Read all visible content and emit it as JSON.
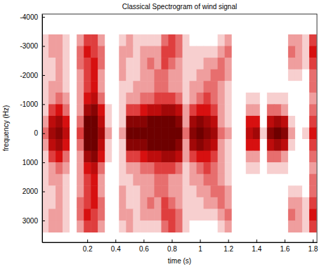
{
  "chart_data": {
    "type": "heatmap",
    "title": "Classical Spectrogram of wind signal",
    "x_label": "time (s)",
    "y_label": "frequency (Hz)",
    "color": "#d81010",
    "xlim": [
      -0.12,
      1.83
    ],
    "ylim": [
      -4100,
      3750
    ],
    "xticks": [
      0.2,
      0.4,
      0.6,
      0.8,
      1,
      1.2,
      1.4,
      1.6,
      1.8
    ],
    "yticks": [
      -4000,
      -3000,
      -2000,
      -1000,
      0,
      1000,
      2000,
      3000
    ],
    "x": [
      -0.1,
      -0.05,
      0,
      0.05,
      0.1,
      0.15,
      0.2,
      0.25,
      0.3,
      0.35,
      0.4,
      0.45,
      0.5,
      0.55,
      0.6,
      0.65,
      0.7,
      0.75,
      0.8,
      0.85,
      0.9,
      0.95,
      1,
      1.05,
      1.1,
      1.15,
      1.2,
      1.25,
      1.3,
      1.35,
      1.4,
      1.45,
      1.5,
      1.55,
      1.6,
      1.65,
      1.7,
      1.75,
      1.8
    ],
    "y": [
      -3200,
      -2800,
      -2400,
      -2000,
      -1600,
      -1200,
      -800,
      -400,
      0,
      400,
      800,
      1200,
      1600,
      2000,
      2400,
      2800,
      3200
    ],
    "cells": [
      [
        1,
        2,
        2,
        1,
        0,
        2,
        4,
        4,
        2,
        0,
        0,
        1,
        2,
        1,
        1,
        1,
        1,
        3,
        4,
        3,
        1,
        0,
        0,
        0,
        0,
        1,
        2,
        0,
        0,
        0,
        0,
        0,
        0,
        0,
        0,
        2,
        2,
        1,
        4
      ],
      [
        1,
        2,
        2,
        1,
        0,
        3,
        5,
        4,
        3,
        0,
        0,
        2,
        2,
        1,
        2,
        2,
        2,
        4,
        4,
        3,
        1,
        1,
        1,
        1,
        1,
        2,
        3,
        0,
        0,
        0,
        0,
        0,
        0,
        0,
        0,
        3,
        2,
        1,
        5
      ],
      [
        1,
        1,
        2,
        1,
        0,
        3,
        4,
        5,
        3,
        0,
        0,
        2,
        1,
        1,
        2,
        3,
        2,
        4,
        3,
        2,
        1,
        1,
        1,
        2,
        2,
        3,
        2,
        0,
        0,
        0,
        0,
        0,
        0,
        0,
        0,
        2,
        2,
        1,
        4
      ],
      [
        1,
        1,
        2,
        1,
        0,
        2,
        4,
        5,
        2,
        0,
        0,
        2,
        1,
        1,
        2,
        2,
        3,
        3,
        2,
        2,
        1,
        1,
        2,
        2,
        3,
        3,
        2,
        0,
        0,
        0,
        0,
        0,
        0,
        0,
        0,
        1,
        1,
        0,
        3
      ],
      [
        1,
        2,
        2,
        1,
        0,
        2,
        4,
        5,
        2,
        0,
        0,
        1,
        1,
        2,
        2,
        2,
        3,
        3,
        2,
        2,
        1,
        2,
        2,
        3,
        3,
        2,
        1,
        0,
        0,
        0,
        0,
        0,
        0,
        0,
        0,
        0,
        0,
        0,
        3
      ],
      [
        1,
        2,
        3,
        2,
        0,
        2,
        5,
        6,
        3,
        0,
        0,
        1,
        2,
        2,
        3,
        3,
        4,
        4,
        4,
        3,
        1,
        2,
        3,
        4,
        3,
        2,
        1,
        0,
        0,
        1,
        1,
        0,
        1,
        1,
        1,
        0,
        0,
        0,
        2
      ],
      [
        1,
        4,
        5,
        3,
        0,
        2,
        7,
        8,
        5,
        1,
        0,
        1,
        4,
        4,
        5,
        6,
        6,
        7,
        7,
        6,
        2,
        4,
        5,
        5,
        4,
        2,
        1,
        0,
        0,
        2,
        2,
        0,
        3,
        3,
        2,
        0,
        0,
        0,
        3
      ],
      [
        2,
        6,
        7,
        5,
        0,
        3,
        9,
        9,
        6,
        1,
        0,
        1,
        8,
        8,
        8,
        9,
        9,
        9,
        9,
        8,
        2,
        7,
        8,
        7,
        6,
        2,
        1,
        0,
        0,
        5,
        5,
        0,
        6,
        7,
        6,
        1,
        0,
        0,
        4
      ],
      [
        3,
        7,
        8,
        6,
        0,
        4,
        9,
        9,
        7,
        2,
        0,
        2,
        9,
        9,
        9,
        9,
        9,
        9,
        9,
        9,
        3,
        8,
        9,
        8,
        7,
        3,
        2,
        0,
        0,
        6,
        7,
        1,
        8,
        9,
        8,
        2,
        0,
        1,
        5
      ],
      [
        2,
        6,
        7,
        5,
        0,
        3,
        9,
        9,
        6,
        1,
        0,
        1,
        8,
        8,
        8,
        9,
        9,
        9,
        9,
        8,
        2,
        7,
        8,
        7,
        6,
        2,
        1,
        0,
        0,
        5,
        5,
        0,
        6,
        7,
        6,
        1,
        0,
        0,
        4
      ],
      [
        1,
        4,
        5,
        3,
        0,
        2,
        7,
        8,
        5,
        1,
        0,
        1,
        4,
        4,
        5,
        6,
        6,
        7,
        7,
        6,
        2,
        4,
        5,
        5,
        4,
        2,
        1,
        0,
        0,
        2,
        2,
        0,
        3,
        3,
        2,
        0,
        0,
        0,
        3
      ],
      [
        1,
        2,
        3,
        2,
        0,
        2,
        5,
        6,
        3,
        0,
        0,
        1,
        2,
        2,
        3,
        3,
        4,
        4,
        4,
        3,
        1,
        2,
        3,
        4,
        3,
        2,
        1,
        0,
        0,
        1,
        1,
        0,
        1,
        1,
        1,
        0,
        0,
        0,
        2
      ],
      [
        1,
        2,
        2,
        1,
        0,
        2,
        4,
        5,
        2,
        0,
        0,
        1,
        1,
        2,
        2,
        2,
        3,
        3,
        2,
        2,
        1,
        2,
        2,
        3,
        3,
        2,
        1,
        0,
        0,
        0,
        0,
        0,
        0,
        0,
        0,
        0,
        0,
        0,
        3
      ],
      [
        1,
        1,
        2,
        1,
        0,
        2,
        4,
        5,
        2,
        0,
        0,
        2,
        1,
        1,
        2,
        2,
        3,
        3,
        2,
        2,
        1,
        1,
        2,
        2,
        3,
        3,
        2,
        0,
        0,
        0,
        0,
        0,
        0,
        0,
        0,
        1,
        1,
        0,
        3
      ],
      [
        1,
        1,
        2,
        1,
        0,
        3,
        4,
        5,
        3,
        0,
        0,
        2,
        1,
        1,
        2,
        3,
        2,
        4,
        3,
        2,
        1,
        1,
        1,
        2,
        2,
        3,
        2,
        0,
        0,
        0,
        0,
        0,
        0,
        0,
        0,
        2,
        2,
        1,
        4
      ],
      [
        1,
        2,
        2,
        1,
        0,
        3,
        5,
        4,
        3,
        0,
        0,
        2,
        2,
        1,
        2,
        2,
        2,
        4,
        4,
        3,
        1,
        1,
        1,
        1,
        1,
        2,
        3,
        0,
        0,
        0,
        0,
        0,
        0,
        0,
        0,
        3,
        2,
        1,
        5
      ],
      [
        1,
        2,
        2,
        1,
        0,
        2,
        4,
        4,
        2,
        0,
        0,
        1,
        2,
        1,
        1,
        1,
        1,
        3,
        4,
        3,
        1,
        0,
        0,
        0,
        0,
        1,
        2,
        0,
        0,
        0,
        0,
        0,
        0,
        0,
        0,
        2,
        2,
        1,
        4
      ]
    ]
  }
}
